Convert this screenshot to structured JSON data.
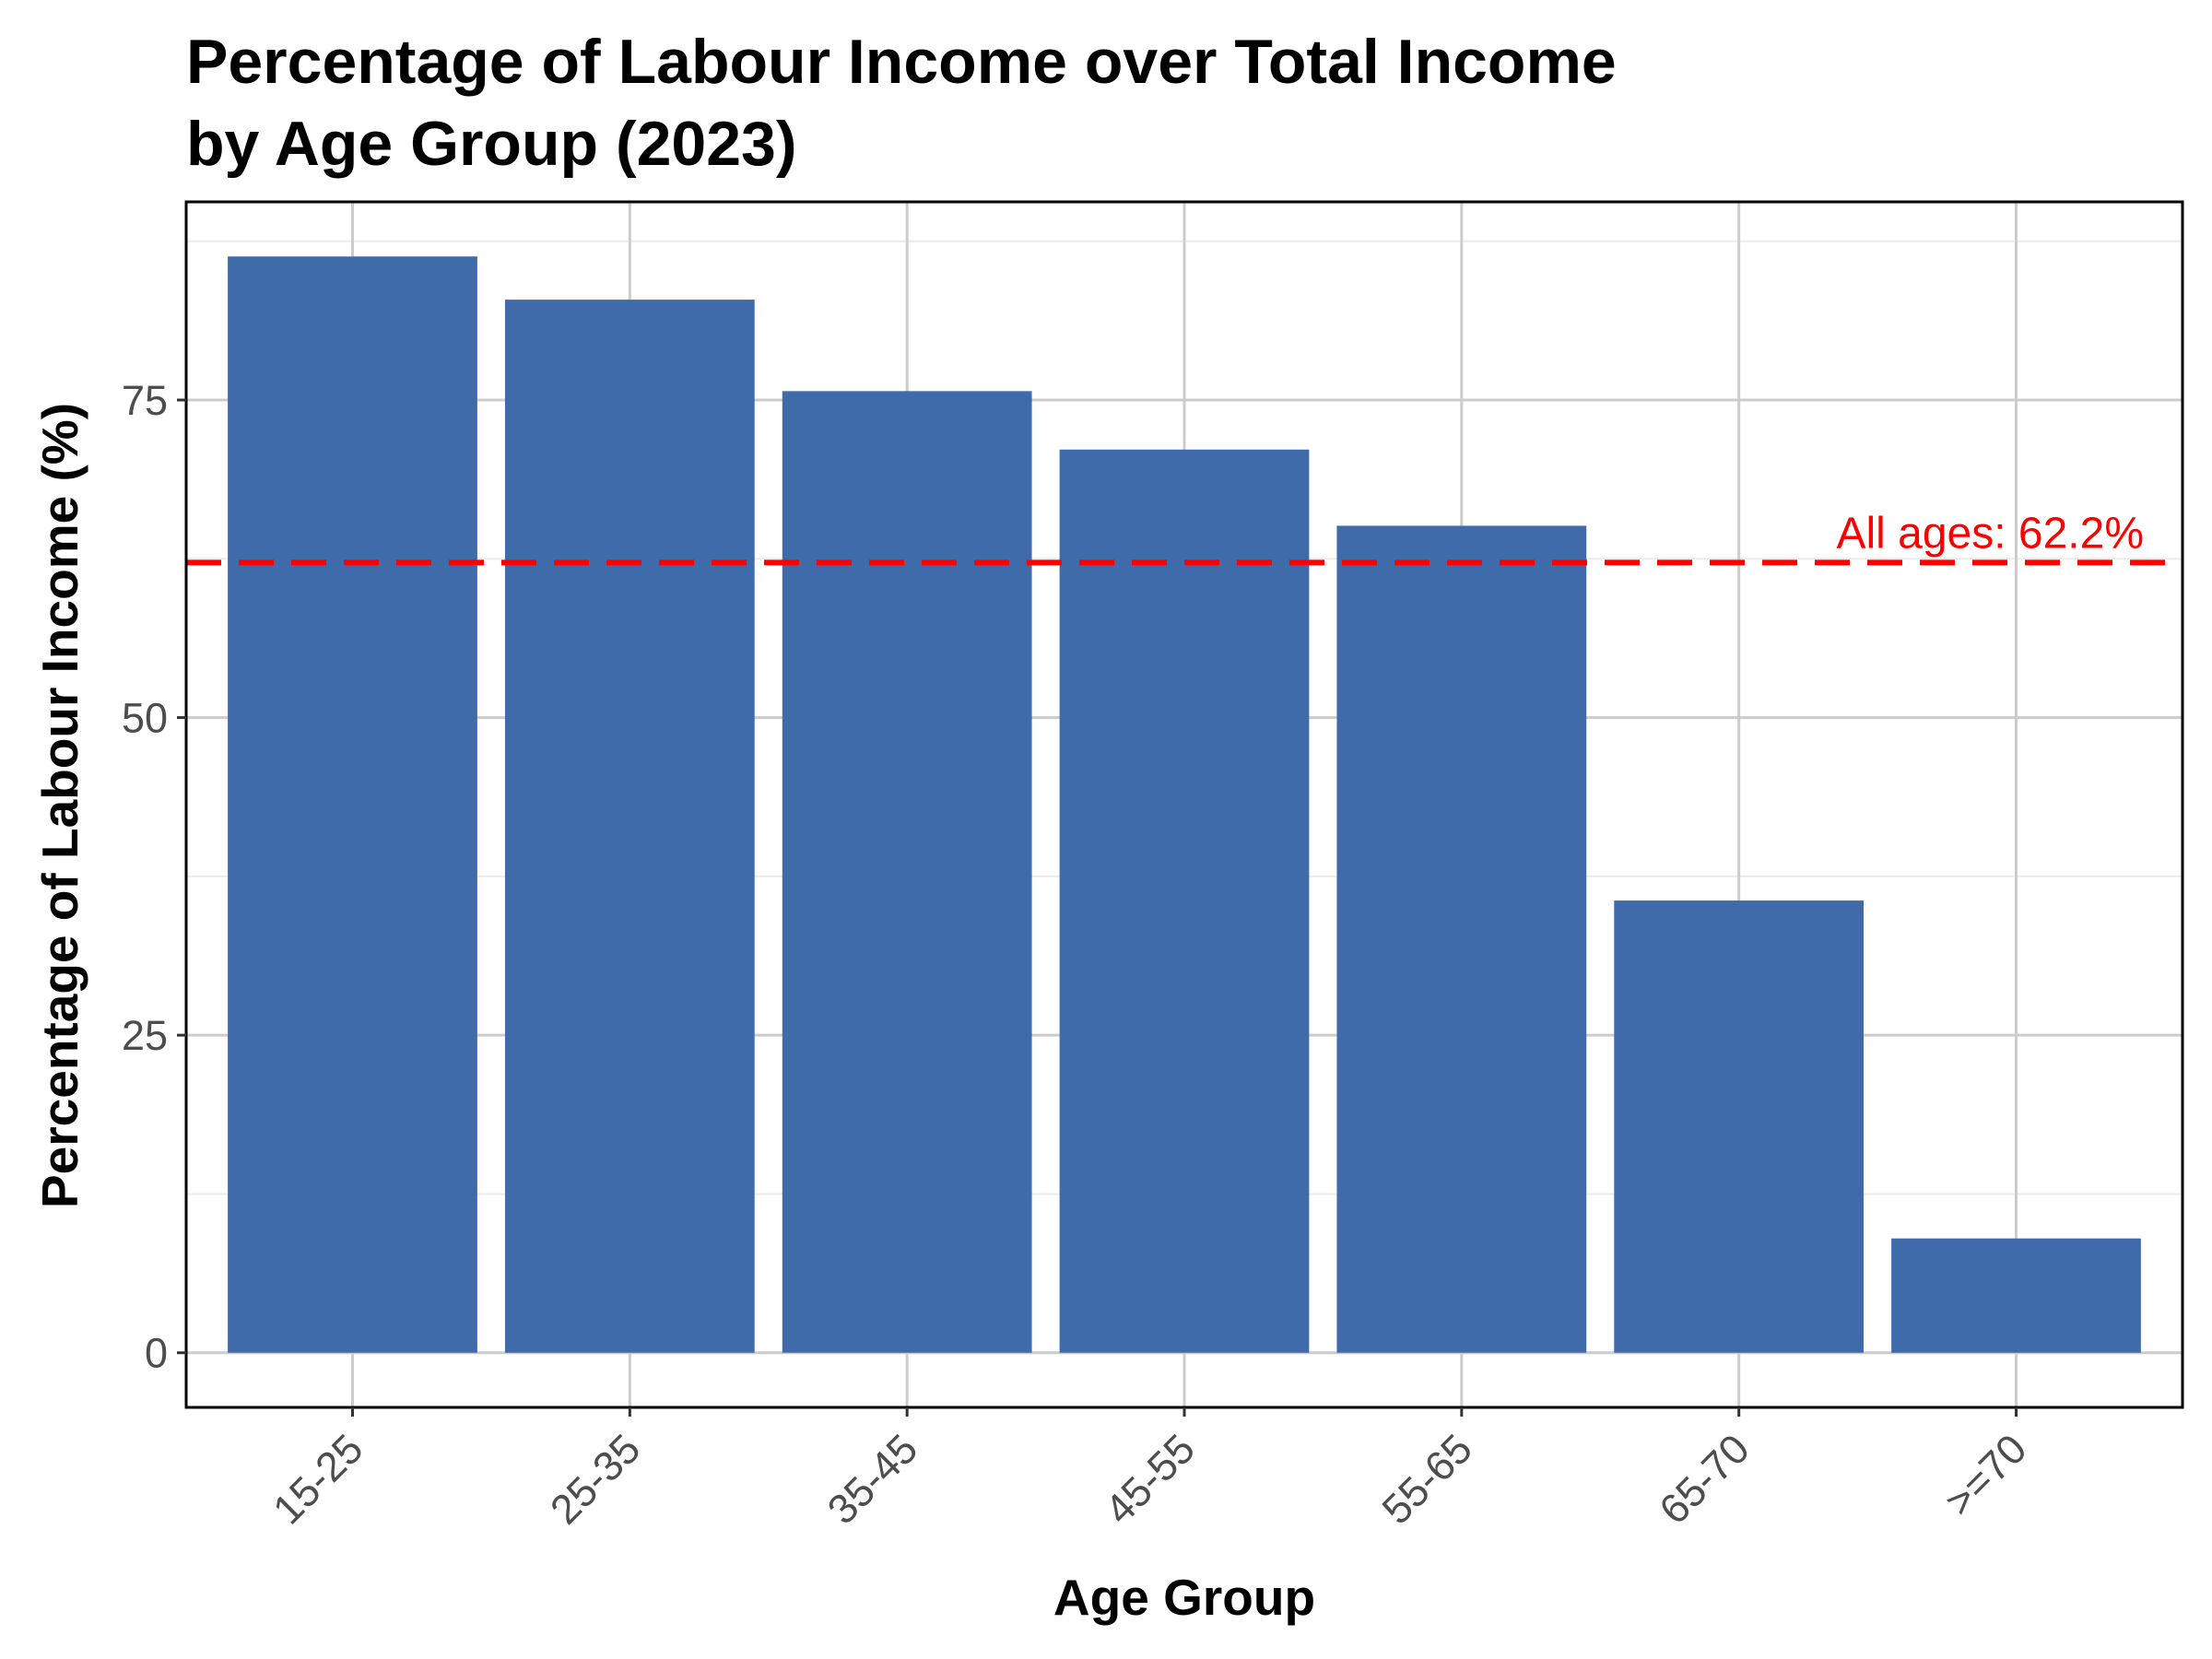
{
  "chart_data": {
    "type": "bar",
    "title_lines": [
      "Percentage of Labour Income over Total Income",
      "by Age Group (2023)"
    ],
    "xlabel": "Age Group",
    "ylabel": "Percentage of Labour Income (%)",
    "categories": [
      "15-25",
      "25-35",
      "35-45",
      "45-55",
      "55-65",
      "65-70",
      ">=70"
    ],
    "values": [
      86.3,
      82.9,
      75.7,
      71.1,
      65.1,
      35.6,
      9.0
    ],
    "ylim": [
      -4.3,
      90.6
    ],
    "yticks": [
      0,
      25,
      50,
      75
    ],
    "ytick_labels": [
      "0",
      "25",
      "50",
      "75"
    ],
    "minor_yticks": [
      12.5,
      37.5,
      62.5,
      87.5
    ],
    "grid": true,
    "reference_line": {
      "value": 62.2,
      "label": "All ages: 62.2%",
      "style": "dashed"
    },
    "colors": {
      "bar": "#3f6bab",
      "reference_line": "#ff0000",
      "major_grid": "#cccccc",
      "minor_grid": "#ebebeb",
      "panel_border": "#000000"
    }
  }
}
